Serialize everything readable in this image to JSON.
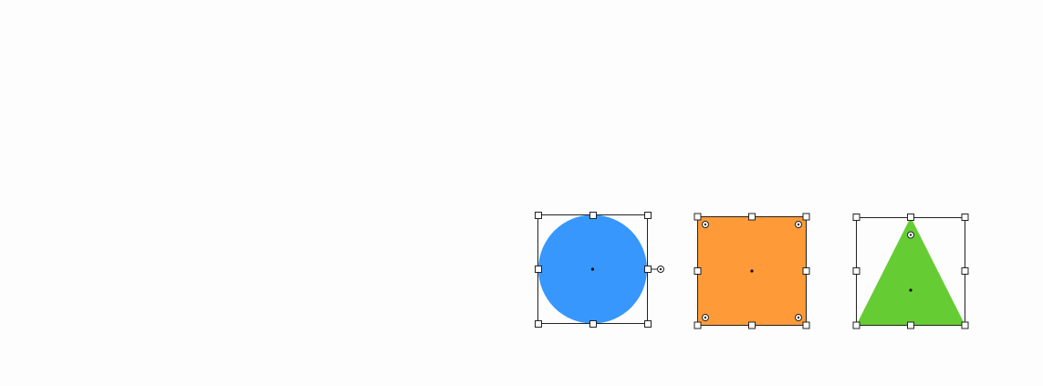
{
  "canvas": {
    "background": "#fdfdfd"
  },
  "shapes": [
    {
      "id": "circle",
      "kind": "ellipse",
      "fill": "#3797fd",
      "selected": true,
      "handles": 8,
      "control_points": 1
    },
    {
      "id": "rectangle",
      "kind": "rectangle",
      "fill": "#fe9a37",
      "selected": true,
      "handles": 8,
      "control_points": 4
    },
    {
      "id": "triangle",
      "kind": "triangle",
      "fill": "#66cc33",
      "selected": true,
      "handles": 8,
      "control_points": 1
    }
  ],
  "icons": {
    "resize_handle": "square-handle-icon",
    "control_point": "circle-dot-handle-icon",
    "center": "center-dot-icon"
  }
}
